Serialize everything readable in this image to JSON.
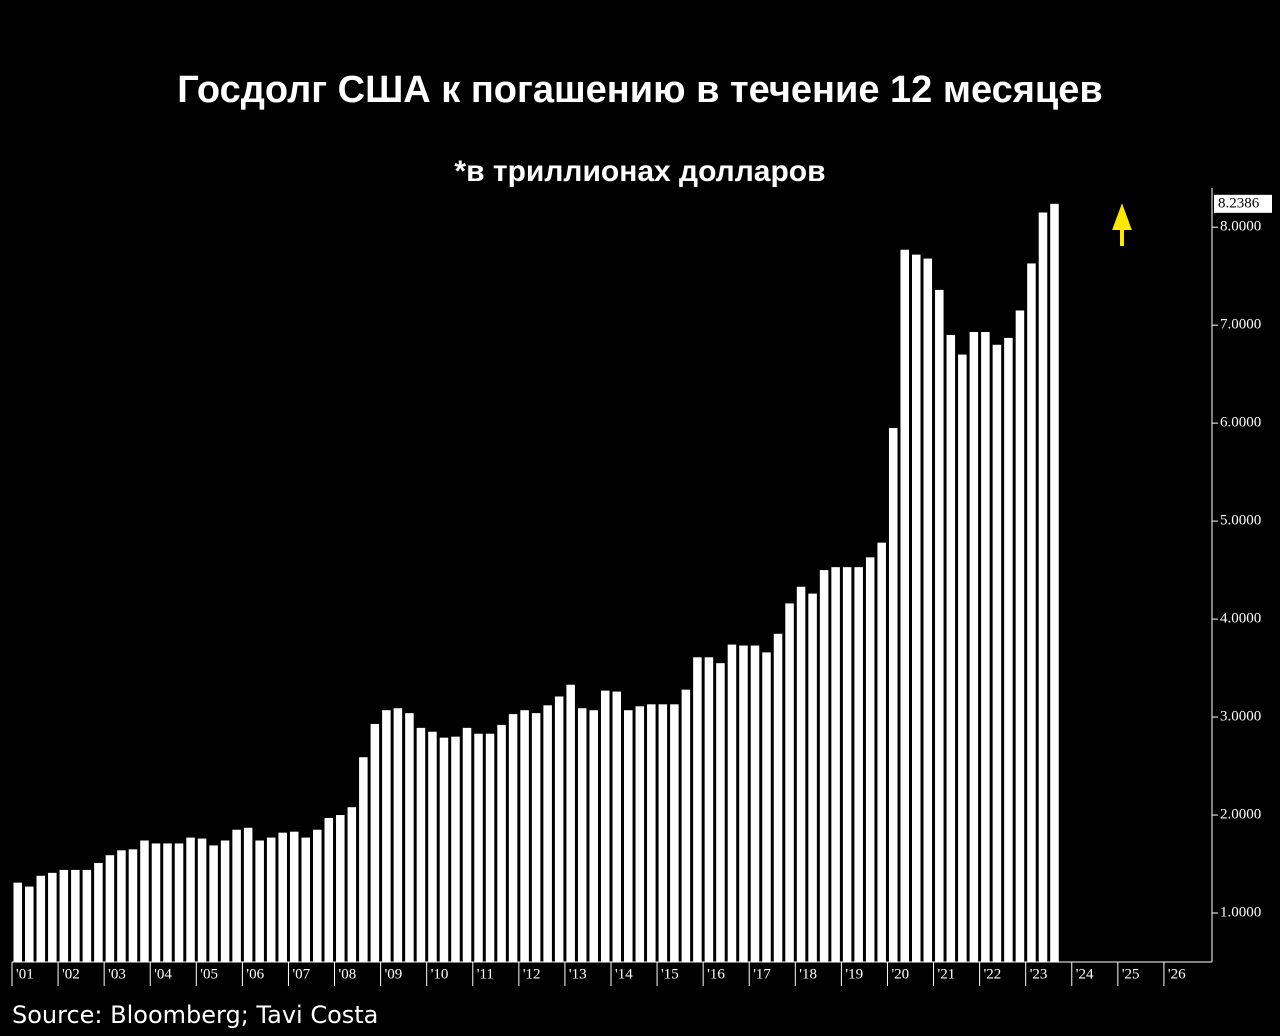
{
  "chart_data": {
    "type": "bar",
    "title": "Госдолг США к погашению в течение 12 месяцев",
    "subtitle": "*в триллионах долларов",
    "source": "Source: Bloomberg; Tavi Costa",
    "color": "#ffffff",
    "categories": [
      "'01",
      null,
      null,
      null,
      "'02",
      null,
      null,
      null,
      "'03",
      null,
      null,
      null,
      "'04",
      null,
      null,
      null,
      "'05",
      null,
      null,
      null,
      "'06",
      null,
      null,
      null,
      "'07",
      null,
      null,
      null,
      "'08",
      null,
      null,
      null,
      "'09",
      null,
      null,
      null,
      "'10",
      null,
      null,
      null,
      "'11",
      null,
      null,
      null,
      "'12",
      null,
      null,
      null,
      "'13",
      null,
      null,
      null,
      "'14",
      null,
      null,
      null,
      "'15",
      null,
      null,
      null,
      "'16",
      null,
      null,
      null,
      "'17",
      null,
      null,
      null,
      "'18",
      null,
      null,
      null,
      "'19",
      null,
      null,
      null,
      "'20",
      null,
      null,
      null,
      "'21",
      null,
      null,
      null,
      "'22",
      null,
      null,
      null,
      "'23",
      null,
      null,
      null,
      "'24",
      null,
      null,
      null,
      "'25",
      null,
      null,
      null,
      "'26",
      null,
      null,
      null
    ],
    "values": [
      1.31,
      1.27,
      1.38,
      1.41,
      1.44,
      1.44,
      1.44,
      1.51,
      1.59,
      1.64,
      1.65,
      1.74,
      1.71,
      1.71,
      1.71,
      1.77,
      1.76,
      1.69,
      1.74,
      1.85,
      1.87,
      1.74,
      1.77,
      1.82,
      1.83,
      1.77,
      1.85,
      1.97,
      2.0,
      2.08,
      2.59,
      2.93,
      3.07,
      3.09,
      3.04,
      2.89,
      2.85,
      2.79,
      2.8,
      2.89,
      2.83,
      2.83,
      2.92,
      3.03,
      3.07,
      3.04,
      3.12,
      3.21,
      3.33,
      3.09,
      3.07,
      3.27,
      3.26,
      3.07,
      3.11,
      3.13,
      3.13,
      3.13,
      3.28,
      3.61,
      3.61,
      3.55,
      3.74,
      3.73,
      3.73,
      3.66,
      3.85,
      4.16,
      4.33,
      4.26,
      4.5,
      4.53,
      4.53,
      4.53,
      4.63,
      4.78,
      5.95,
      7.77,
      7.72,
      7.68,
      7.36,
      6.9,
      6.7,
      6.93,
      6.93,
      6.8,
      6.87,
      7.15,
      7.63,
      8.15,
      8.2386,
      null,
      null,
      null,
      null,
      null,
      null,
      null,
      null,
      null,
      null,
      null,
      null,
      null
    ],
    "ylim": [
      0.5,
      8.4
    ],
    "yticks": [
      {
        "value": 1,
        "label": "1.0000"
      },
      {
        "value": 2,
        "label": "2.0000"
      },
      {
        "value": 3,
        "label": "3.0000"
      },
      {
        "value": 4,
        "label": "4.0000"
      },
      {
        "value": 5,
        "label": "5.0000"
      },
      {
        "value": 6,
        "label": "6.0000"
      },
      {
        "value": 7,
        "label": "7.0000"
      },
      {
        "value": 8,
        "label": "8.0000"
      }
    ]
  }
}
